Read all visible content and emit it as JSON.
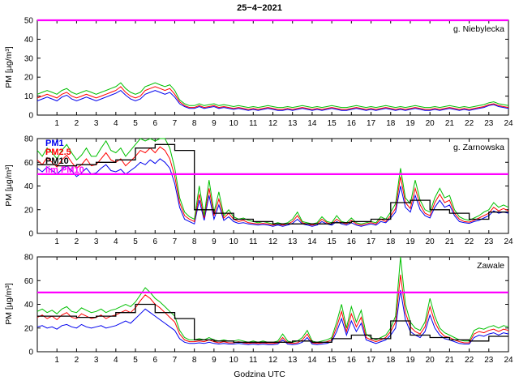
{
  "chart_data": {
    "type": "line",
    "title": "25−4−2021",
    "xlabel": "Godzina UTC",
    "ylabel": "PM [µg/m³]",
    "xlim": [
      0,
      24
    ],
    "x_start": 0,
    "x_step": 0.25,
    "xticks": [
      1,
      2,
      3,
      4,
      5,
      6,
      7,
      8,
      9,
      10,
      11,
      12,
      13,
      14,
      15,
      16,
      17,
      18,
      19,
      20,
      21,
      22,
      23,
      24
    ],
    "limit_color": "#ff00ff",
    "panels": [
      {
        "name": "g. Niebylecka",
        "ylim": [
          0,
          50
        ],
        "yticks": [
          0,
          10,
          20,
          30,
          40,
          50
        ],
        "limit": 50,
        "series": [
          {
            "name": "PM1",
            "color": "#0000ee",
            "values": [
              7.5,
              8.5,
              9.5,
              8.5,
              7.5,
              9.5,
              10.5,
              8.5,
              7.5,
              8.5,
              9.5,
              8.5,
              7.5,
              8.5,
              9.5,
              10.5,
              11.5,
              13,
              10.5,
              8.5,
              7.5,
              8.5,
              11,
              12,
              13,
              12,
              11,
              12,
              9.5,
              6,
              4.5,
              3.5,
              3.5,
              4.5,
              3.5,
              4,
              4.5,
              3.5,
              4,
              3.5,
              3,
              3.5,
              3,
              2.5,
              3,
              2.5,
              3,
              3.5,
              3,
              2.5,
              2.5,
              3,
              2.5,
              3,
              3.5,
              3,
              2.5,
              3,
              2.5,
              3,
              3.5,
              3,
              2.5,
              2.5,
              3,
              3.5,
              3,
              2.5,
              3,
              2.5,
              3,
              3.5,
              3,
              2.5,
              3,
              2.5,
              3,
              3.5,
              3,
              2.5,
              2.5,
              3,
              2.5,
              3,
              3.5,
              3,
              2.5,
              3,
              2.5,
              3,
              3.5,
              4,
              5,
              5.5,
              4.5,
              4,
              3.5
            ]
          },
          {
            "name": "PM2.5",
            "color": "#ff0000",
            "values": [
              9,
              10,
              11,
              10,
              9,
              11,
              12,
              10,
              9,
              10,
              11,
              10,
              9,
              10,
              11,
              12,
              13,
              15,
              12,
              10,
              9,
              10,
              13,
              14,
              15,
              14,
              13,
              14,
              11,
              7,
              5,
              4,
              4,
              5,
              4,
              4.5,
              5,
              4,
              4.5,
              4,
              3.5,
              4,
              3.5,
              3,
              3.5,
              3,
              3.5,
              4,
              3.5,
              3,
              3,
              3.5,
              3,
              3.5,
              4,
              3.5,
              3,
              3.5,
              3,
              3.5,
              4,
              3.5,
              3,
              3,
              3.5,
              4,
              3.5,
              3,
              3.5,
              3,
              3.5,
              4,
              3.5,
              3,
              3.5,
              3,
              3.5,
              4,
              3.5,
              3,
              3,
              3.5,
              3,
              3.5,
              4,
              3.5,
              3,
              3.5,
              3,
              3.5,
              4,
              4.5,
              5.5,
              6,
              5,
              4.5,
              4
            ]
          },
          {
            "name": "PM10",
            "color": "#00c000",
            "values": [
              11,
              12,
              13,
              12,
              11,
              13,
              14,
              12,
              11,
              12,
              13,
              12,
              11,
              12,
              13,
              14,
              15,
              17,
              14,
              12,
              11,
              12,
              15,
              16,
              17,
              16,
              15,
              16,
              13,
              8,
              6,
              5,
              5,
              6,
              5,
              5.5,
              6,
              5,
              5.5,
              5,
              4.5,
              5,
              4.5,
              4,
              4.5,
              4,
              4.5,
              5,
              4.5,
              4,
              4,
              4.5,
              4,
              4.5,
              5,
              4.5,
              4,
              4.5,
              4,
              4.5,
              5,
              4.5,
              4,
              4,
              4.5,
              5,
              4.5,
              4,
              4.5,
              4,
              4.5,
              5,
              4.5,
              4,
              4.5,
              4,
              4.5,
              5,
              4.5,
              4,
              4,
              4.5,
              4,
              4.5,
              5,
              4.5,
              4,
              4.5,
              4,
              4.5,
              5,
              5.5,
              6.5,
              7,
              6,
              5.5,
              5
            ]
          }
        ],
        "reference_hourly": null
      },
      {
        "name": "g. Zarnowska",
        "ylim": [
          0,
          80
        ],
        "yticks": [
          0,
          20,
          40,
          60,
          80
        ],
        "limit": 50,
        "legend": [
          {
            "label": "PM1",
            "color": "#0000ee"
          },
          {
            "label": "PM2.5",
            "color": "#ff0000"
          },
          {
            "label": "PM10",
            "color": "#000000"
          },
          {
            "label": "lim PM10",
            "color": "#ff00ff"
          }
        ],
        "series": [
          {
            "name": "PM1",
            "color": "#0000ee",
            "values": [
              55,
              52,
              56,
              53,
              50,
              54,
              57,
              53,
              48,
              51,
              55,
              50,
              51,
              55,
              58,
              53,
              52,
              54,
              50,
              53,
              56,
              60,
              58,
              62,
              59,
              63,
              60,
              55,
              42,
              22,
              12,
              10,
              8,
              28,
              11,
              32,
              12,
              24,
              11,
              14,
              10,
              8.5,
              9,
              8,
              7.5,
              7,
              7.5,
              7,
              6,
              7,
              6,
              7,
              8.5,
              12,
              8,
              7,
              6,
              7,
              10,
              8,
              7,
              10,
              8,
              7,
              9,
              7,
              6,
              7,
              8,
              7,
              10,
              9,
              13,
              18,
              40,
              22,
              18,
              32,
              20,
              15,
              13,
              22,
              28,
              22,
              24,
              15,
              10,
              9,
              8.5,
              10,
              11,
              13,
              15,
              19,
              17,
              18,
              17
            ]
          },
          {
            "name": "PM2.5",
            "color": "#ff0000",
            "values": [
              62,
              58,
              64,
              60,
              56,
              62,
              66,
              60,
              55,
              58,
              63,
              57,
              58,
              63,
              68,
              62,
              60,
              63,
              57,
              61,
              65,
              70,
              68,
              72,
              68,
              73,
              70,
              63,
              48,
              26,
              15,
              12,
              10,
              33,
              13,
              38,
              15,
              29,
              13,
              17,
              12,
              10,
              11,
              9,
              8.5,
              8,
              8.5,
              8,
              7,
              8,
              7,
              8,
              10,
              15,
              9,
              8,
              7,
              8,
              12,
              9,
              8,
              12,
              9,
              8,
              11,
              8,
              7,
              8,
              9,
              8,
              12,
              10,
              15,
              21,
              48,
              26,
              21,
              38,
              24,
              17,
              15,
              26,
              33,
              26,
              28,
              17,
              12,
              10,
              9.5,
              11,
              13,
              15,
              17,
              22,
              19,
              21,
              19
            ]
          },
          {
            "name": "PM10",
            "color": "#00c000",
            "values": [
              70,
              65,
              72,
              68,
              63,
              70,
              75,
              68,
              62,
              66,
              72,
              65,
              65,
              72,
              78,
              70,
              68,
              72,
              65,
              70,
              75,
              80,
              78,
              82,
              78,
              84,
              80,
              72,
              55,
              30,
              18,
              14,
              12,
              40,
              15,
              45,
              18,
              35,
              15,
              20,
              14,
              12,
              13,
              11,
              10,
              9,
              10,
              9,
              8,
              9,
              8,
              9,
              12,
              18,
              10,
              9,
              8,
              9,
              14,
              10,
              9,
              15,
              10,
              9,
              13,
              9,
              8,
              9,
              10,
              9,
              14,
              12,
              18,
              25,
              55,
              30,
              25,
              45,
              28,
              20,
              18,
              30,
              38,
              30,
              32,
              20,
              14,
              12,
              11,
              13,
              15,
              18,
              20,
              26,
              22,
              24,
              22
            ]
          }
        ],
        "reference_hourly": {
          "name": "PM10 ref",
          "color": "#000000",
          "values": [
            58,
            57,
            58,
            60,
            62,
            72,
            75,
            70,
            20,
            17,
            12,
            10,
            8,
            8,
            8,
            9,
            10,
            12,
            26,
            28,
            20,
            17,
            12,
            18
          ]
        }
      },
      {
        "name": "Zawale",
        "ylim": [
          0,
          80
        ],
        "yticks": [
          0,
          20,
          40,
          60,
          80
        ],
        "limit": 50,
        "series": [
          {
            "name": "PM1",
            "color": "#0000ee",
            "values": [
              21,
              22,
              20,
              21,
              19,
              22,
              23,
              21,
              20,
              23,
              21,
              20,
              21,
              22,
              20,
              21,
              22,
              24,
              26,
              24,
              28,
              32,
              36,
              33,
              30,
              27,
              24,
              21,
              18,
              11,
              8,
              7,
              7,
              7.5,
              7,
              8,
              7,
              6.5,
              7,
              6.5,
              6.5,
              7,
              6.5,
              6,
              6.5,
              6,
              6.5,
              6,
              6,
              6.5,
              10,
              6.5,
              6,
              6.5,
              8,
              12,
              6.5,
              6,
              6.5,
              7,
              8.5,
              17,
              28,
              14,
              26,
              17,
              24,
              10,
              8.5,
              7,
              8.5,
              10,
              14,
              20,
              52,
              27,
              17,
              14,
              12,
              17,
              31,
              20,
              14,
              11,
              10,
              8.5,
              7,
              6.5,
              6.5,
              12,
              14,
              13,
              15,
              16,
              14,
              16,
              15
            ]
          },
          {
            "name": "PM2.5",
            "color": "#ff0000",
            "values": [
              29,
              31,
              28,
              30,
              27,
              31,
              33,
              29,
              28,
              32,
              30,
              28,
              29,
              31,
              28,
              30,
              31,
              33,
              35,
              33,
              37,
              43,
              48,
              45,
              40,
              37,
              33,
              29,
              25,
              15,
              10,
              8.5,
              8.5,
              9,
              8.5,
              10,
              8.5,
              7.5,
              8.5,
              7.5,
              7.5,
              8.5,
              7.5,
              7,
              7.5,
              7,
              7.5,
              7,
              7,
              7.5,
              12,
              7.5,
              7,
              7.5,
              10,
              15,
              7.5,
              7,
              7.5,
              8.5,
              10,
              21,
              34,
              17,
              32,
              21,
              29,
              12,
              10,
              8.5,
              10,
              12,
              17,
              25,
              65,
              33,
              21,
              17,
              15,
              21,
              38,
              25,
              17,
              13,
              12,
              10,
              8.5,
              7.5,
              7.5,
              15,
              17,
              16,
              18,
              19,
              17,
              19,
              18
            ]
          },
          {
            "name": "PM10",
            "color": "#00c000",
            "values": [
              34,
              36,
              33,
              35,
              32,
              36,
              38,
              34,
              33,
              37,
              35,
              33,
              34,
              36,
              33,
              35,
              36,
              38,
              40,
              38,
              42,
              48,
              54,
              50,
              45,
              42,
              38,
              34,
              30,
              18,
              12,
              10,
              10,
              11,
              10,
              12,
              10,
              9,
              10,
              9,
              9,
              10,
              9,
              8,
              9,
              8,
              9,
              8,
              8,
              9,
              15,
              9,
              8,
              9,
              12,
              18,
              9,
              8,
              9,
              10,
              12,
              25,
              40,
              20,
              38,
              25,
              35,
              15,
              12,
              10,
              12,
              14,
              20,
              30,
              80,
              40,
              25,
              20,
              18,
              25,
              45,
              30,
              20,
              16,
              14,
              12,
              10,
              9,
              9,
              18,
              20,
              19,
              21,
              22,
              20,
              22,
              21
            ]
          }
        ],
        "reference_hourly": {
          "name": "PM10 ref",
          "color": "#000000",
          "values": [
            30,
            30,
            29,
            30,
            33,
            40,
            33,
            28,
            10,
            9,
            8,
            8,
            8,
            9,
            8,
            11,
            14,
            11,
            26,
            14,
            12,
            10,
            9,
            13
          ]
        }
      }
    ]
  }
}
